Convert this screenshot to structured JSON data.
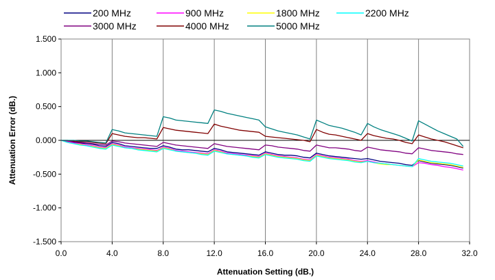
{
  "chart_data": {
    "type": "line",
    "title": "",
    "xlabel": "Attenuation Setting (dB.)",
    "ylabel": "Attenuation Error (dB.)",
    "xlim": [
      0,
      32
    ],
    "ylim": [
      -1.5,
      1.5
    ],
    "x_ticks": [
      "0.0",
      "4.0",
      "8.0",
      "12.0",
      "16.0",
      "20.0",
      "24.0",
      "28.0",
      "32.0"
    ],
    "y_ticks": [
      "1.500",
      "1.000",
      "0.500",
      "0.000",
      "-0.500",
      "-1.000",
      "-1.500"
    ],
    "grid": "vertical",
    "legend_position": "top",
    "x": [
      0,
      0.5,
      1,
      1.5,
      2,
      2.5,
      3,
      3.5,
      4,
      4.5,
      5,
      5.5,
      6,
      6.5,
      7,
      7.5,
      8,
      8.5,
      9,
      9.5,
      10,
      10.5,
      11,
      11.5,
      12,
      12.5,
      13,
      13.5,
      14,
      14.5,
      15,
      15.5,
      16,
      16.5,
      17,
      17.5,
      18,
      18.5,
      19,
      19.5,
      20,
      20.5,
      21,
      21.5,
      22,
      22.5,
      23,
      23.5,
      24,
      24.5,
      25,
      25.5,
      26,
      26.5,
      27,
      27.5,
      28,
      28.5,
      29,
      29.5,
      30,
      30.5,
      31,
      31.5
    ],
    "series": [
      {
        "name": "200 MHz",
        "color": "#000080",
        "values": [
          0,
          -0.01,
          -0.03,
          -0.04,
          -0.05,
          -0.06,
          -0.08,
          -0.09,
          -0.03,
          -0.05,
          -0.08,
          -0.09,
          -0.1,
          -0.11,
          -0.12,
          -0.12,
          -0.08,
          -0.1,
          -0.13,
          -0.14,
          -0.14,
          -0.15,
          -0.16,
          -0.17,
          -0.12,
          -0.14,
          -0.17,
          -0.18,
          -0.19,
          -0.2,
          -0.21,
          -0.22,
          -0.17,
          -0.19,
          -0.21,
          -0.22,
          -0.22,
          -0.23,
          -0.25,
          -0.26,
          -0.19,
          -0.21,
          -0.23,
          -0.24,
          -0.25,
          -0.26,
          -0.27,
          -0.28,
          -0.27,
          -0.29,
          -0.31,
          -0.32,
          -0.33,
          -0.34,
          -0.36,
          -0.37,
          -0.3,
          -0.32,
          -0.34,
          -0.35,
          -0.36,
          -0.37,
          -0.39,
          -0.41
        ]
      },
      {
        "name": "900 MHz",
        "color": "#ff00ff",
        "values": [
          0,
          -0.02,
          -0.04,
          -0.05,
          -0.07,
          -0.08,
          -0.1,
          -0.11,
          -0.05,
          -0.07,
          -0.1,
          -0.11,
          -0.12,
          -0.13,
          -0.14,
          -0.15,
          -0.1,
          -0.12,
          -0.15,
          -0.16,
          -0.17,
          -0.18,
          -0.19,
          -0.2,
          -0.14,
          -0.16,
          -0.19,
          -0.2,
          -0.21,
          -0.22,
          -0.23,
          -0.24,
          -0.19,
          -0.21,
          -0.23,
          -0.24,
          -0.25,
          -0.26,
          -0.28,
          -0.29,
          -0.21,
          -0.23,
          -0.25,
          -0.26,
          -0.27,
          -0.28,
          -0.3,
          -0.31,
          -0.3,
          -0.32,
          -0.34,
          -0.35,
          -0.36,
          -0.37,
          -0.38,
          -0.39,
          -0.33,
          -0.34,
          -0.36,
          -0.37,
          -0.39,
          -0.4,
          -0.42,
          -0.44
        ]
      },
      {
        "name": "1800 MHz",
        "color": "#ffff00",
        "values": [
          0,
          -0.03,
          -0.05,
          -0.06,
          -0.08,
          -0.09,
          -0.11,
          -0.12,
          -0.06,
          -0.08,
          -0.11,
          -0.12,
          -0.13,
          -0.14,
          -0.15,
          -0.16,
          -0.11,
          -0.13,
          -0.16,
          -0.17,
          -0.18,
          -0.19,
          -0.2,
          -0.21,
          -0.15,
          -0.17,
          -0.2,
          -0.21,
          -0.22,
          -0.23,
          -0.24,
          -0.25,
          -0.2,
          -0.22,
          -0.24,
          -0.25,
          -0.26,
          -0.27,
          -0.29,
          -0.3,
          -0.22,
          -0.24,
          -0.26,
          -0.27,
          -0.28,
          -0.29,
          -0.31,
          -0.32,
          -0.31,
          -0.33,
          -0.35,
          -0.36,
          -0.36,
          -0.37,
          -0.38,
          -0.39,
          -0.29,
          -0.31,
          -0.33,
          -0.34,
          -0.35,
          -0.36,
          -0.38,
          -0.4
        ]
      },
      {
        "name": "2200 MHz",
        "color": "#00ffff",
        "values": [
          0,
          -0.03,
          -0.05,
          -0.07,
          -0.08,
          -0.1,
          -0.12,
          -0.13,
          -0.07,
          -0.09,
          -0.11,
          -0.12,
          -0.14,
          -0.15,
          -0.16,
          -0.17,
          -0.12,
          -0.14,
          -0.16,
          -0.17,
          -0.18,
          -0.19,
          -0.21,
          -0.22,
          -0.16,
          -0.18,
          -0.2,
          -0.21,
          -0.22,
          -0.23,
          -0.25,
          -0.26,
          -0.21,
          -0.23,
          -0.25,
          -0.26,
          -0.27,
          -0.28,
          -0.3,
          -0.31,
          -0.23,
          -0.25,
          -0.27,
          -0.28,
          -0.29,
          -0.3,
          -0.32,
          -0.33,
          -0.31,
          -0.33,
          -0.34,
          -0.35,
          -0.36,
          -0.37,
          -0.38,
          -0.39,
          -0.27,
          -0.29,
          -0.31,
          -0.32,
          -0.33,
          -0.34,
          -0.36,
          -0.38
        ]
      },
      {
        "name": "3000 MHz",
        "color": "#800080",
        "values": [
          0,
          -0.01,
          -0.02,
          -0.03,
          -0.04,
          -0.05,
          -0.06,
          -0.07,
          -0.01,
          -0.02,
          -0.04,
          -0.05,
          -0.06,
          -0.07,
          -0.08,
          -0.09,
          -0.03,
          -0.05,
          -0.07,
          -0.08,
          -0.09,
          -0.1,
          -0.11,
          -0.12,
          -0.05,
          -0.07,
          -0.09,
          -0.1,
          -0.11,
          -0.12,
          -0.13,
          -0.14,
          -0.07,
          -0.08,
          -0.1,
          -0.11,
          -0.12,
          -0.13,
          -0.15,
          -0.16,
          -0.07,
          -0.09,
          -0.11,
          -0.11,
          -0.12,
          -0.13,
          -0.15,
          -0.16,
          -0.1,
          -0.12,
          -0.14,
          -0.15,
          -0.16,
          -0.17,
          -0.19,
          -0.2,
          -0.11,
          -0.13,
          -0.15,
          -0.16,
          -0.17,
          -0.18,
          -0.2,
          -0.21
        ]
      },
      {
        "name": "4000 MHz",
        "color": "#800000",
        "values": [
          0,
          0.0,
          -0.01,
          -0.02,
          -0.02,
          -0.03,
          -0.04,
          -0.05,
          0.1,
          0.08,
          0.06,
          0.05,
          0.04,
          0.04,
          0.03,
          0.02,
          0.19,
          0.17,
          0.15,
          0.14,
          0.13,
          0.12,
          0.11,
          0.1,
          0.24,
          0.21,
          0.19,
          0.17,
          0.15,
          0.14,
          0.13,
          0.12,
          0.06,
          0.05,
          0.04,
          0.03,
          0.02,
          0.01,
          0.0,
          -0.02,
          0.16,
          0.12,
          0.09,
          0.08,
          0.06,
          0.04,
          0.02,
          0.0,
          0.1,
          0.07,
          0.05,
          0.03,
          0.02,
          0.0,
          -0.03,
          -0.05,
          0.08,
          0.05,
          0.02,
          0.0,
          -0.02,
          -0.05,
          -0.08,
          -0.11
        ]
      },
      {
        "name": "5000 MHz",
        "color": "#008080",
        "values": [
          0,
          0.0,
          0.0,
          -0.01,
          -0.01,
          -0.02,
          -0.03,
          -0.04,
          0.16,
          0.14,
          0.11,
          0.1,
          0.09,
          0.08,
          0.07,
          0.06,
          0.35,
          0.33,
          0.3,
          0.29,
          0.28,
          0.27,
          0.26,
          0.25,
          0.45,
          0.43,
          0.4,
          0.38,
          0.36,
          0.34,
          0.32,
          0.3,
          0.2,
          0.17,
          0.14,
          0.12,
          0.1,
          0.08,
          0.05,
          0.02,
          0.3,
          0.26,
          0.22,
          0.2,
          0.18,
          0.15,
          0.12,
          0.08,
          0.25,
          0.2,
          0.16,
          0.13,
          0.1,
          0.07,
          0.03,
          -0.01,
          0.29,
          0.24,
          0.19,
          0.14,
          0.1,
          0.06,
          0.02,
          -0.09
        ]
      }
    ]
  }
}
